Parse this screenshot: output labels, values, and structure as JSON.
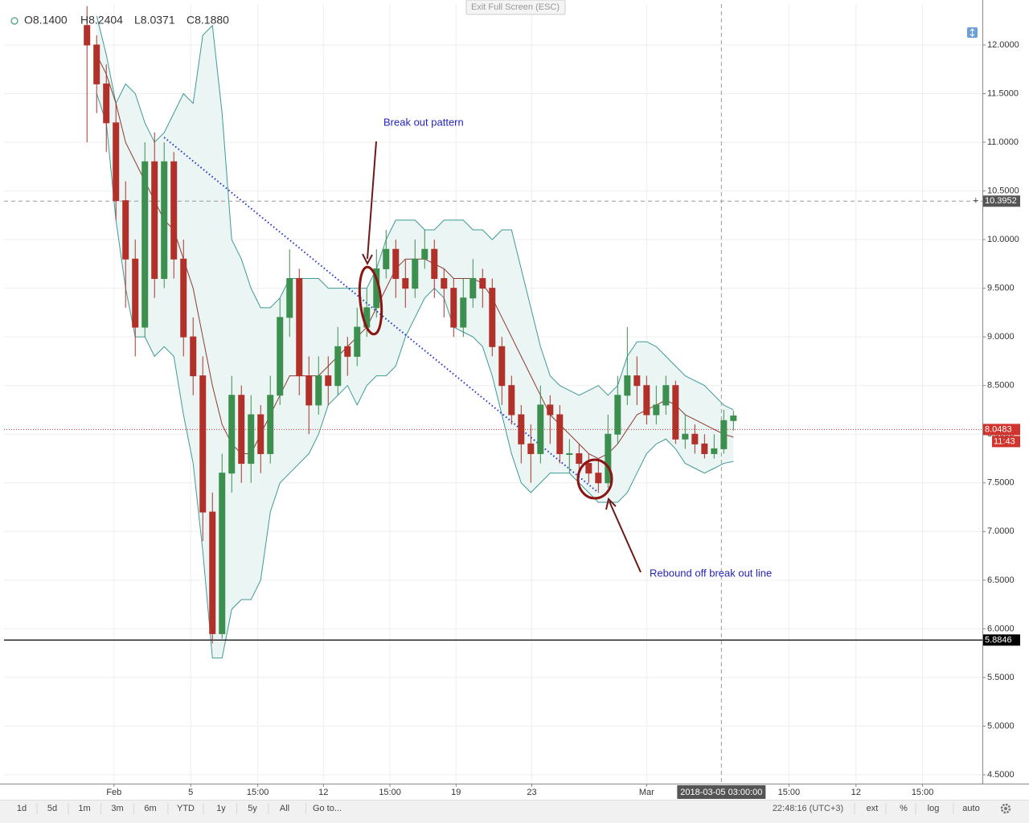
{
  "exit_button": "Exit Full Screen (ESC)",
  "toolbar": {
    "ranges": [
      "1d",
      "5d",
      "1m",
      "3m",
      "6m",
      "YTD",
      "1y",
      "5y",
      "All",
      "Go to..."
    ],
    "clock": "22:48:16 (UTC+3)",
    "options": [
      "ext",
      "%",
      "log",
      "auto"
    ]
  },
  "chart_data": {
    "type": "candlestick",
    "ohlc_legend": [
      "O8.1400",
      "H8.2404",
      "L8.0371",
      "C8.1880"
    ],
    "up_color": "#3d8f4f",
    "down_color": "#b0302a",
    "x": [
      0,
      1,
      2,
      3,
      4,
      5,
      6,
      7,
      8,
      9,
      10,
      11,
      12,
      13,
      14,
      15,
      16,
      17,
      18,
      19,
      20,
      21,
      22,
      23,
      24,
      25,
      26,
      27,
      28,
      29,
      30,
      31,
      32,
      33,
      34,
      35,
      36,
      37,
      38,
      39,
      40,
      41,
      42,
      43,
      44,
      45,
      46,
      47,
      48,
      49,
      50,
      51,
      52,
      53,
      54,
      55,
      56,
      57,
      58,
      59,
      60,
      61,
      62,
      63,
      64,
      65,
      66,
      67
    ],
    "open": [
      12.2,
      12.0,
      11.6,
      11.2,
      10.4,
      9.8,
      9.1,
      10.8,
      9.6,
      10.8,
      9.8,
      9.0,
      8.6,
      7.2,
      5.95,
      7.6,
      8.4,
      7.7,
      8.2,
      7.8,
      8.4,
      9.2,
      9.6,
      8.6,
      8.3,
      8.6,
      8.5,
      8.9,
      8.8,
      9.1,
      9.3,
      9.7,
      9.9,
      9.6,
      9.5,
      9.8,
      9.9,
      9.6,
      9.5,
      9.1,
      9.4,
      9.6,
      9.5,
      8.9,
      8.5,
      8.2,
      7.9,
      7.8,
      8.3,
      8.2,
      7.8,
      7.8,
      7.7,
      7.6,
      7.5,
      8.0,
      8.4,
      8.6,
      8.5,
      8.2,
      8.3,
      8.5,
      7.95,
      8.0,
      7.9,
      7.8,
      7.85,
      8.14
    ],
    "high": [
      12.4,
      12.1,
      11.8,
      11.4,
      10.6,
      10.0,
      11.0,
      11.1,
      11.0,
      10.9,
      10.0,
      9.2,
      8.8,
      7.4,
      7.8,
      8.6,
      8.5,
      8.4,
      8.3,
      8.6,
      9.4,
      9.9,
      9.7,
      8.8,
      8.8,
      8.8,
      9.1,
      9.0,
      9.3,
      9.5,
      9.9,
      10.1,
      10.0,
      9.8,
      10.0,
      10.1,
      10.0,
      9.7,
      9.6,
      9.6,
      9.8,
      9.7,
      9.6,
      9.0,
      8.6,
      8.3,
      8.1,
      8.5,
      8.4,
      8.3,
      7.95,
      7.9,
      7.8,
      7.75,
      8.2,
      8.6,
      9.1,
      8.8,
      8.6,
      8.5,
      8.6,
      8.55,
      8.2,
      8.1,
      8.0,
      8.0,
      8.25,
      8.2404
    ],
    "low": [
      11.0,
      11.3,
      10.9,
      10.2,
      9.3,
      8.8,
      9.0,
      9.4,
      9.5,
      9.6,
      8.8,
      8.4,
      6.9,
      5.85,
      5.9,
      7.4,
      7.5,
      7.5,
      7.6,
      7.7,
      8.3,
      9.0,
      8.4,
      8.0,
      8.2,
      8.3,
      8.4,
      8.6,
      8.7,
      9.0,
      9.2,
      9.6,
      9.4,
      9.3,
      9.4,
      9.7,
      9.4,
      9.2,
      9.0,
      9.0,
      9.3,
      9.3,
      8.8,
      8.3,
      8.1,
      7.7,
      7.5,
      7.7,
      7.9,
      7.7,
      7.6,
      7.6,
      7.5,
      7.4,
      7.45,
      7.9,
      8.3,
      8.3,
      8.1,
      8.1,
      8.2,
      7.9,
      7.85,
      7.8,
      7.75,
      7.75,
      7.8,
      8.0371
    ],
    "close": [
      12.0,
      11.6,
      11.2,
      10.4,
      9.8,
      9.1,
      10.8,
      9.6,
      10.8,
      9.8,
      9.0,
      8.6,
      7.2,
      5.95,
      7.6,
      8.4,
      7.7,
      8.2,
      7.8,
      8.4,
      9.2,
      9.6,
      8.6,
      8.3,
      8.6,
      8.5,
      8.9,
      8.8,
      9.1,
      9.3,
      9.7,
      9.9,
      9.6,
      9.5,
      9.8,
      9.9,
      9.6,
      9.5,
      9.1,
      9.4,
      9.6,
      9.5,
      8.9,
      8.5,
      8.2,
      7.9,
      7.8,
      8.3,
      8.2,
      7.8,
      7.8,
      7.7,
      7.6,
      7.5,
      8.0,
      8.4,
      8.6,
      8.5,
      8.2,
      8.3,
      8.5,
      7.95,
      8.0,
      7.9,
      7.8,
      7.85,
      8.14,
      8.188
    ],
    "bands": {
      "color": "#3e9a95",
      "fill": "#eaf5f4",
      "middle_color": "#8e3b34",
      "upper": [
        null,
        12.3,
        11.9,
        11.4,
        11.6,
        11.5,
        11.2,
        11.0,
        11.1,
        11.3,
        11.5,
        11.4,
        12.1,
        12.2,
        11.3,
        10.0,
        9.8,
        9.5,
        9.3,
        9.3,
        9.4,
        9.6,
        9.6,
        9.6,
        9.6,
        9.5,
        9.5,
        9.5,
        9.5,
        9.5,
        9.7,
        10.0,
        10.2,
        10.2,
        10.2,
        10.1,
        10.1,
        10.2,
        10.2,
        10.2,
        10.1,
        10.1,
        10.0,
        10.1,
        10.1,
        9.7,
        9.3,
        8.9,
        8.6,
        8.5,
        8.45,
        8.4,
        8.45,
        8.5,
        8.4,
        8.5,
        8.8,
        8.95,
        8.95,
        8.9,
        8.8,
        8.7,
        8.6,
        8.55,
        8.5,
        8.4,
        8.3,
        8.25
      ],
      "middle": [
        null,
        11.9,
        11.7,
        11.4,
        11.0,
        10.8,
        10.6,
        10.4,
        10.2,
        10.1,
        9.8,
        9.5,
        9.0,
        8.5,
        8.1,
        7.9,
        7.8,
        7.8,
        8.0,
        8.2,
        8.4,
        8.6,
        8.6,
        8.6,
        8.6,
        8.7,
        8.8,
        8.9,
        9.0,
        9.1,
        9.3,
        9.5,
        9.7,
        9.8,
        9.8,
        9.8,
        9.75,
        9.7,
        9.6,
        9.6,
        9.6,
        9.55,
        9.4,
        9.2,
        9.0,
        8.8,
        8.6,
        8.4,
        8.2,
        8.1,
        8.0,
        7.9,
        7.8,
        7.75,
        7.8,
        7.9,
        8.05,
        8.2,
        8.25,
        8.3,
        8.35,
        8.3,
        8.2,
        8.15,
        8.1,
        8.05,
        8.0,
        7.97
      ],
      "lower": [
        null,
        11.5,
        11.2,
        10.2,
        9.5,
        9.0,
        9.0,
        8.8,
        8.9,
        8.8,
        8.2,
        7.7,
        6.8,
        5.7,
        5.7,
        6.2,
        6.3,
        6.3,
        6.5,
        7.2,
        7.5,
        7.6,
        7.7,
        7.8,
        8.0,
        8.3,
        8.4,
        8.5,
        8.3,
        8.5,
        8.6,
        8.6,
        8.7,
        9.0,
        9.2,
        9.4,
        9.5,
        9.4,
        9.1,
        9.05,
        9.0,
        8.9,
        8.6,
        8.2,
        7.8,
        7.5,
        7.4,
        7.5,
        7.6,
        7.6,
        7.6,
        7.5,
        7.4,
        7.3,
        7.3,
        7.3,
        7.4,
        7.6,
        7.8,
        7.9,
        7.95,
        7.85,
        7.7,
        7.65,
        7.6,
        7.65,
        7.7,
        7.72
      ]
    },
    "trendline": {
      "color": "#2233cc",
      "x": [
        8,
        53
      ],
      "values": [
        11.05,
        7.4
      ]
    },
    "annotations": [
      "Break out pattern",
      "Rebound off break out line"
    ],
    "xlim": [
      -8.6,
      92.8
    ],
    "xticks": [
      {
        "value": 2.8,
        "label": "Feb"
      },
      {
        "value": 10.75,
        "label": "5"
      },
      {
        "value": 17.7,
        "label": "15:00"
      },
      {
        "value": 24.5,
        "label": "12"
      },
      {
        "value": 31.4,
        "label": "15:00"
      },
      {
        "value": 38.25,
        "label": "19"
      },
      {
        "value": 46.1,
        "label": "23"
      },
      {
        "value": 58,
        "label": "Mar"
      },
      {
        "value": 72.75,
        "label": "15:00"
      },
      {
        "value": 79.7,
        "label": "12"
      },
      {
        "value": 86.6,
        "label": "15:00"
      }
    ],
    "ylim": [
      4.409,
      12.421
    ],
    "yticks": [
      {
        "value": 12,
        "label": "12.0000"
      },
      {
        "value": 11.5,
        "label": "11.5000"
      },
      {
        "value": 11,
        "label": "11.0000"
      },
      {
        "value": 10.5,
        "label": "10.5000"
      },
      {
        "value": 10,
        "label": "10.0000"
      },
      {
        "value": 9.5,
        "label": "9.5000"
      },
      {
        "value": 9,
        "label": "9.0000"
      },
      {
        "value": 8.5,
        "label": "8.5000"
      },
      {
        "value": 8,
        "label": "8.0000"
      },
      {
        "value": 7.5,
        "label": "7.5000"
      },
      {
        "value": 7,
        "label": "7.0000"
      },
      {
        "value": 6.5,
        "label": "6.5000"
      },
      {
        "value": 6,
        "label": "6.0000"
      },
      {
        "value": 5.5,
        "label": "5.5000"
      },
      {
        "value": 5,
        "label": "5.0000"
      },
      {
        "value": 4.5,
        "label": "4.5000"
      }
    ],
    "grid": true,
    "crosshair": {
      "x": {
        "value": 65.75,
        "label": "2018-03-05 03:00:00"
      },
      "y": {
        "value": 10.3952,
        "label": "10.3952"
      }
    },
    "price_line": {
      "value": 8.0483,
      "label": "8.0483",
      "color": "#d0342c"
    },
    "price_timer": "11:43",
    "support_line": {
      "value": 5.8846,
      "label": "5.8846"
    }
  }
}
